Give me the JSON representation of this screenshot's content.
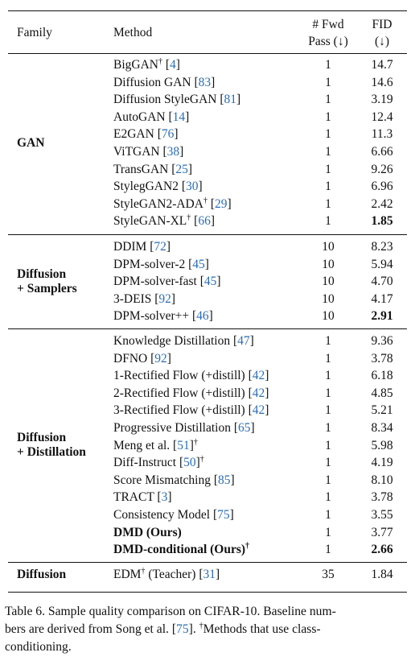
{
  "header": {
    "family": "Family",
    "method": "Method",
    "fwd_line1": "# Fwd",
    "fwd_line2": "Pass (↓)",
    "fid_line1": "FID",
    "fid_line2": "(↓)"
  },
  "groups": [
    {
      "family_lines": [
        "GAN"
      ],
      "rows": [
        {
          "name": "BigGAN",
          "dagger": true,
          "ref": "4",
          "passes": "1",
          "fid": "14.7"
        },
        {
          "name": "Diffusion GAN",
          "dagger": false,
          "ref": "83",
          "passes": "1",
          "fid": "14.6"
        },
        {
          "name": "Diffusion StyleGAN",
          "dagger": false,
          "ref": "81",
          "passes": "1",
          "fid": "3.19"
        },
        {
          "name": "AutoGAN",
          "dagger": false,
          "ref": "14",
          "passes": "1",
          "fid": "12.4"
        },
        {
          "name": "E2GAN",
          "dagger": false,
          "ref": "76",
          "passes": "1",
          "fid": "11.3"
        },
        {
          "name": "ViTGAN",
          "dagger": false,
          "ref": "38",
          "passes": "1",
          "fid": "6.66"
        },
        {
          "name": "TransGAN",
          "dagger": false,
          "ref": "25",
          "passes": "1",
          "fid": "9.26"
        },
        {
          "name": "StylegGAN2",
          "dagger": false,
          "ref": "30",
          "passes": "1",
          "fid": "6.96"
        },
        {
          "name": "StyleGAN2-ADA",
          "dagger": true,
          "ref": "29",
          "passes": "1",
          "fid": "2.42"
        },
        {
          "name": "StyleGAN-XL",
          "dagger": true,
          "ref": "66",
          "passes": "1",
          "fid": "1.85",
          "fid_bold": true
        }
      ]
    },
    {
      "family_lines": [
        "Diffusion",
        "+ Samplers"
      ],
      "rows": [
        {
          "name": "DDIM",
          "dagger": false,
          "ref": "72",
          "passes": "10",
          "fid": "8.23"
        },
        {
          "name": "DPM-solver-2",
          "dagger": false,
          "ref": "45",
          "passes": "10",
          "fid": "5.94"
        },
        {
          "name": "DPM-solver-fast",
          "dagger": false,
          "ref": "45",
          "passes": "10",
          "fid": "4.70"
        },
        {
          "name": "3-DEIS",
          "dagger": false,
          "ref": "92",
          "passes": "10",
          "fid": "4.17"
        },
        {
          "name": "DPM-solver++",
          "dagger": false,
          "ref": "46",
          "passes": "10",
          "fid": "2.91",
          "fid_bold": true
        }
      ]
    },
    {
      "family_lines": [
        "Diffusion",
        "+ Distillation"
      ],
      "rows": [
        {
          "name": "Knowledge Distillation",
          "dagger": false,
          "ref": "47",
          "passes": "1",
          "fid": "9.36"
        },
        {
          "name": "DFNO",
          "dagger": false,
          "ref": "92",
          "passes": "1",
          "fid": "3.78"
        },
        {
          "name": "1-Rectified Flow (+distill)",
          "dagger": false,
          "ref": "42",
          "passes": "1",
          "fid": "6.18"
        },
        {
          "name": "2-Rectified Flow (+distill)",
          "dagger": false,
          "ref": "42",
          "passes": "1",
          "fid": "4.85"
        },
        {
          "name": "3-Rectified Flow (+distill)",
          "dagger": false,
          "ref": "42",
          "passes": "1",
          "fid": "5.21"
        },
        {
          "name": "Progressive Distillation",
          "dagger": false,
          "ref": "65",
          "passes": "1",
          "fid": "8.34"
        },
        {
          "name": "Meng et al.",
          "dagger": false,
          "ref": "51",
          "dagger_after": true,
          "passes": "1",
          "fid": "5.98"
        },
        {
          "name": "Diff-Instruct",
          "dagger": false,
          "ref": "50",
          "dagger_after": true,
          "passes": "1",
          "fid": "4.19"
        },
        {
          "name": "Score Mismatching",
          "dagger": false,
          "ref": "85",
          "passes": "1",
          "fid": "8.10"
        },
        {
          "name": "TRACT",
          "dagger": false,
          "ref": "3",
          "passes": "1",
          "fid": "3.78"
        },
        {
          "name": "Consistency Model",
          "dagger": false,
          "ref": "75",
          "passes": "1",
          "fid": "3.55"
        },
        {
          "name": "DMD (Ours)",
          "bold": true,
          "dagger": false,
          "ref": "",
          "passes": "1",
          "fid": "3.77"
        },
        {
          "name": "DMD-conditional (Ours)",
          "bold": true,
          "dagger": true,
          "ref": "",
          "passes": "1",
          "fid": "2.66",
          "fid_bold": true
        }
      ]
    },
    {
      "family_lines": [
        "Diffusion"
      ],
      "rows": [
        {
          "name": "EDM",
          "dagger": true,
          "suffix": " (Teacher)",
          "ref": "31",
          "passes": "35",
          "fid": "1.84"
        }
      ]
    }
  ],
  "caption": {
    "line1": "Table 6.  Sample quality comparison on CIFAR-10. Baseline num-",
    "line2_pre": "bers are derived from Song et al. [",
    "line2_ref": "75",
    "line2_post": "].  ",
    "line2_dagger": "†",
    "line2_tail": "Methods that use class-",
    "line3": "conditioning."
  },
  "colors": {
    "link": "#2a6db8",
    "text": "#111111"
  }
}
